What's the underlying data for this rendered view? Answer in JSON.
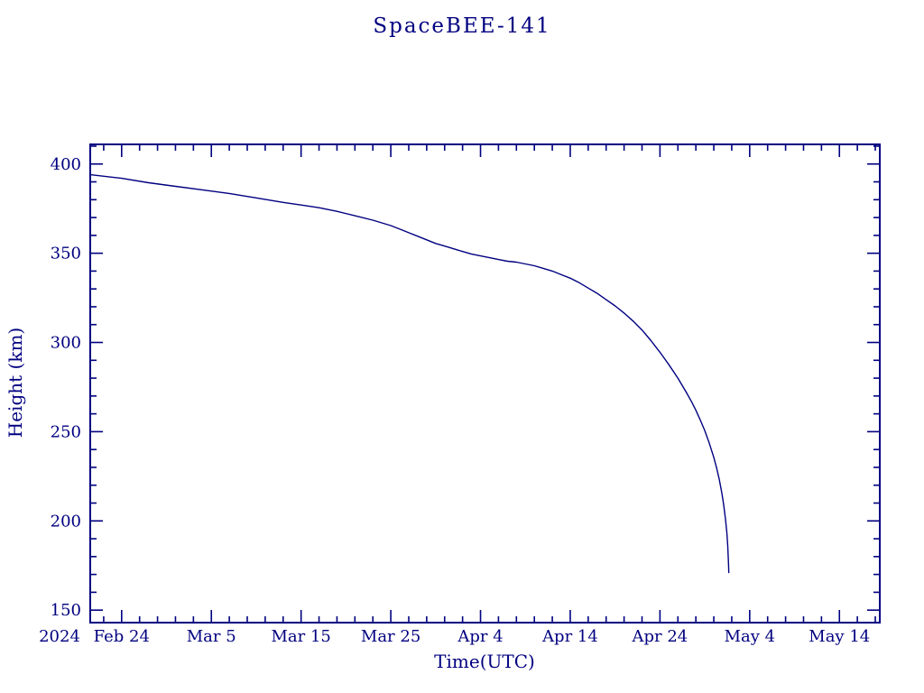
{
  "page": {
    "background": "#ffffff",
    "accent_color": "#000080"
  },
  "chart_data": {
    "type": "line",
    "title": "SpaceBEE-141",
    "xlabel": "Time(UTC)",
    "ylabel": "Height (km)",
    "year_label": "2024",
    "color": "#000080",
    "grid": false,
    "legend": "none",
    "x_axis": {
      "unit": "days since 2024 Feb 24",
      "range": [
        -3.5,
        84.5
      ],
      "major_ticks": [
        0,
        10,
        20,
        30,
        40,
        50,
        60,
        70,
        80
      ],
      "major_tick_labels": [
        "Feb 24",
        "Mar 5",
        "Mar 15",
        "Mar 25",
        "Apr 4",
        "Apr 14",
        "Apr 24",
        "May 4",
        "May 14"
      ],
      "minor_tick_step": 2
    },
    "y_axis": {
      "range": [
        143,
        411
      ],
      "major_ticks": [
        150,
        200,
        250,
        300,
        350,
        400
      ],
      "major_tick_labels": [
        "150",
        "200",
        "250",
        "300",
        "350",
        "400"
      ],
      "minor_tick_step": 10
    },
    "series": [
      {
        "name": "orbital-height-km",
        "points": [
          [
            -3.5,
            394
          ],
          [
            0,
            392
          ],
          [
            3,
            389.5
          ],
          [
            6,
            387.5
          ],
          [
            9,
            385.5
          ],
          [
            12,
            383.5
          ],
          [
            15,
            381
          ],
          [
            18,
            378.5
          ],
          [
            20,
            377
          ],
          [
            22,
            375.5
          ],
          [
            24,
            373.5
          ],
          [
            26,
            371
          ],
          [
            28,
            368.5
          ],
          [
            30,
            365.5
          ],
          [
            31,
            363.5
          ],
          [
            32,
            361.5
          ],
          [
            33,
            359.5
          ],
          [
            34,
            357.5
          ],
          [
            35,
            355.5
          ],
          [
            36,
            354
          ],
          [
            37,
            352.5
          ],
          [
            38,
            351
          ],
          [
            39,
            349.5
          ],
          [
            40,
            348.5
          ],
          [
            41,
            347.5
          ],
          [
            42,
            346.5
          ],
          [
            43,
            345.5
          ],
          [
            44,
            345
          ],
          [
            45,
            344
          ],
          [
            46,
            343
          ],
          [
            47,
            341.5
          ],
          [
            48,
            340
          ],
          [
            49,
            338
          ],
          [
            50,
            336
          ],
          [
            51,
            333.5
          ],
          [
            52,
            330.5
          ],
          [
            53,
            327.5
          ],
          [
            54,
            324
          ],
          [
            55,
            320.5
          ],
          [
            56,
            316.5
          ],
          [
            57,
            312
          ],
          [
            58,
            307
          ],
          [
            59,
            301
          ],
          [
            60,
            294.5
          ],
          [
            61,
            287.5
          ],
          [
            62,
            280
          ],
          [
            63,
            271.5
          ],
          [
            63.5,
            267
          ],
          [
            64,
            262
          ],
          [
            64.5,
            256.5
          ],
          [
            65,
            250.5
          ],
          [
            65.5,
            243.5
          ],
          [
            66,
            235.5
          ],
          [
            66.3,
            230
          ],
          [
            66.6,
            223.5
          ],
          [
            66.9,
            215.5
          ],
          [
            67.1,
            209
          ],
          [
            67.3,
            201
          ],
          [
            67.45,
            193.5
          ],
          [
            67.55,
            186
          ],
          [
            67.62,
            178
          ],
          [
            67.67,
            171
          ]
        ]
      }
    ]
  }
}
